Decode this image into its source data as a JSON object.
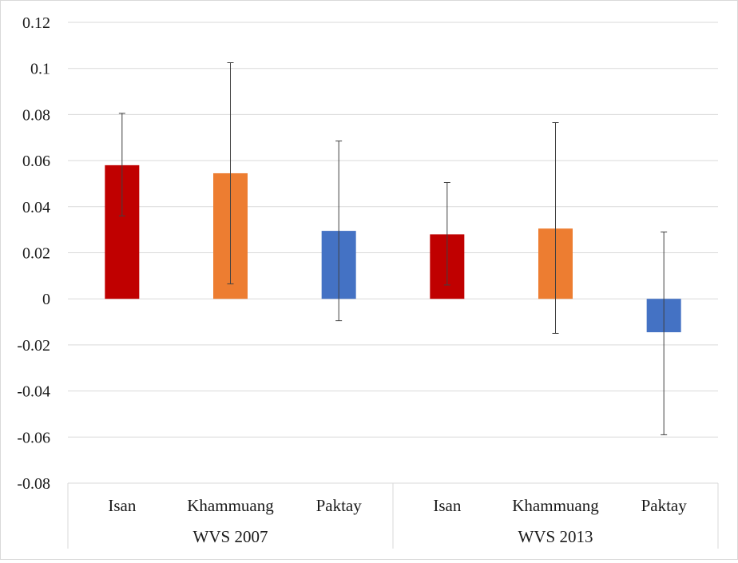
{
  "chart_data": {
    "type": "bar",
    "title": "",
    "xlabel": "",
    "ylabel": "",
    "ylim": [
      -0.08,
      0.12
    ],
    "yticks": [
      0.12,
      0.1,
      0.08,
      0.06,
      0.04,
      0.02,
      0,
      -0.02,
      -0.04,
      -0.06,
      -0.08
    ],
    "ytick_labels": [
      "0.12",
      "0.1",
      "0.08",
      "0.06",
      "0.04",
      "0.02",
      "0",
      "-0.02",
      "-0.04",
      "-0.06",
      "-0.08"
    ],
    "grid": true,
    "legend": "none",
    "groups": [
      {
        "label": "WVS 2007",
        "categories": [
          "Isan",
          "Khammuang",
          "Paktay"
        ]
      },
      {
        "label": "WVS 2013",
        "categories": [
          "Isan",
          "Khammuang",
          "Paktay"
        ]
      }
    ],
    "bars": [
      {
        "group": 0,
        "category": "Isan",
        "value": 0.058,
        "err_low": 0.036,
        "err_high": 0.0805,
        "color": "#c00000"
      },
      {
        "group": 0,
        "category": "Khammuang",
        "value": 0.0545,
        "err_low": 0.0065,
        "err_high": 0.1025,
        "color": "#ed7d31"
      },
      {
        "group": 0,
        "category": "Paktay",
        "value": 0.0295,
        "err_low": -0.0095,
        "err_high": 0.0685,
        "color": "#4472c4"
      },
      {
        "group": 1,
        "category": "Isan",
        "value": 0.028,
        "err_low": 0.006,
        "err_high": 0.0505,
        "color": "#c00000"
      },
      {
        "group": 1,
        "category": "Khammuang",
        "value": 0.0305,
        "err_low": -0.015,
        "err_high": 0.0765,
        "color": "#ed7d31"
      },
      {
        "group": 1,
        "category": "Paktay",
        "value": -0.0145,
        "err_low": -0.059,
        "err_high": 0.029,
        "color": "#4472c4"
      }
    ],
    "colors": {
      "gridline": "#d9d9d9",
      "errorbar": "#404040"
    }
  }
}
